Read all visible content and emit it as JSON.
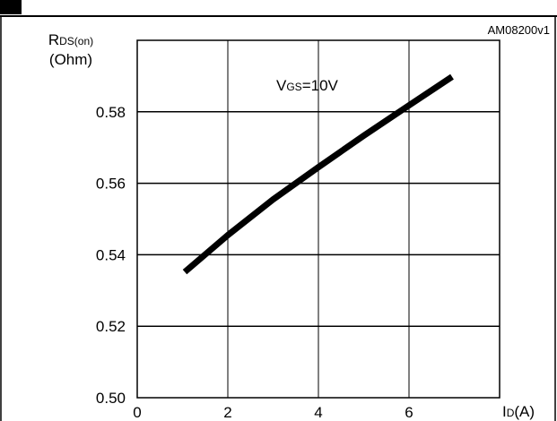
{
  "chart_data": {
    "type": "line",
    "title": "",
    "figure_id": "AM08200v1",
    "ylabel": {
      "main": "R",
      "sub": "DS(on)",
      "unit": "(Ohm)"
    },
    "xlabel": {
      "main": "I",
      "sub": "D",
      "unit": "(A)"
    },
    "annotation": {
      "main": "V",
      "sub": "GS",
      "rest": "=10V"
    },
    "xlim": [
      0,
      8
    ],
    "ylim": [
      0.5,
      0.6
    ],
    "x_ticks": [
      {
        "value": 0,
        "label": "0"
      },
      {
        "value": 2,
        "label": "2"
      },
      {
        "value": 4,
        "label": "4"
      },
      {
        "value": 6,
        "label": "6"
      }
    ],
    "y_ticks": [
      {
        "value": 0.5,
        "label": "0.50"
      },
      {
        "value": 0.52,
        "label": "0.52"
      },
      {
        "value": 0.54,
        "label": "0.54"
      },
      {
        "value": 0.56,
        "label": "0.56"
      },
      {
        "value": 0.58,
        "label": "0.58"
      }
    ],
    "grid": true,
    "series": [
      {
        "color": "#000000",
        "x": [
          1.05,
          2,
          3,
          4,
          5,
          6,
          6.95
        ],
        "y": [
          0.5352,
          0.5455,
          0.5555,
          0.5645,
          0.5733,
          0.5818,
          0.5898
        ]
      }
    ]
  }
}
